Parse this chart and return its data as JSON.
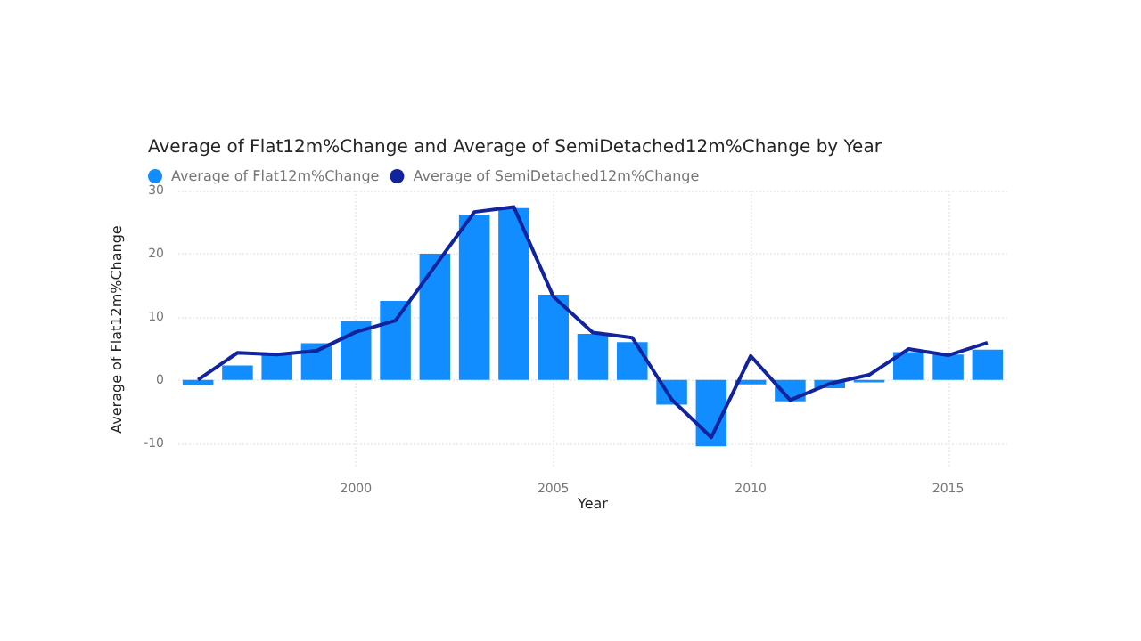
{
  "chart_data": {
    "type": "bar",
    "title": "Average of Flat12m%Change and Average of SemiDetached12m%Change by Year",
    "xlabel": "Year",
    "ylabel": "Average of Flat12m%Change",
    "x": [
      1996,
      1997,
      1998,
      1999,
      2000,
      2001,
      2002,
      2003,
      2004,
      2005,
      2006,
      2007,
      2008,
      2009,
      2010,
      2011,
      2012,
      2013,
      2014,
      2015,
      2016
    ],
    "series": [
      {
        "name": "Average of Flat12m%Change",
        "color": "#118dff",
        "values": [
          -0.8,
          2.3,
          4.0,
          5.8,
          9.3,
          12.5,
          20.0,
          26.2,
          27.2,
          13.5,
          7.3,
          6.0,
          -3.9,
          -10.5,
          -0.7,
          -3.4,
          -1.3,
          -0.4,
          4.4,
          4.0,
          4.8
        ]
      },
      {
        "name": "Average of SemiDetached12m%Change",
        "type": "line",
        "color": "#12239e",
        "values": [
          0,
          4.3,
          4.0,
          4.6,
          7.6,
          9.4,
          18.0,
          26.6,
          27.4,
          13.2,
          7.5,
          6.7,
          -3.1,
          -9.1,
          3.8,
          -3.2,
          -0.6,
          0.8,
          4.9,
          3.9,
          5.9
        ]
      }
    ],
    "xlim": [
      1995.5,
      2016.5
    ],
    "xticks": [
      2000,
      2005,
      2010,
      2015
    ],
    "ylim": [
      -14,
      30
    ],
    "yticks": [
      -10,
      0,
      10,
      20,
      30
    ],
    "grid": true,
    "legend": "top left",
    "marker": "none",
    "line_style": "solid"
  }
}
